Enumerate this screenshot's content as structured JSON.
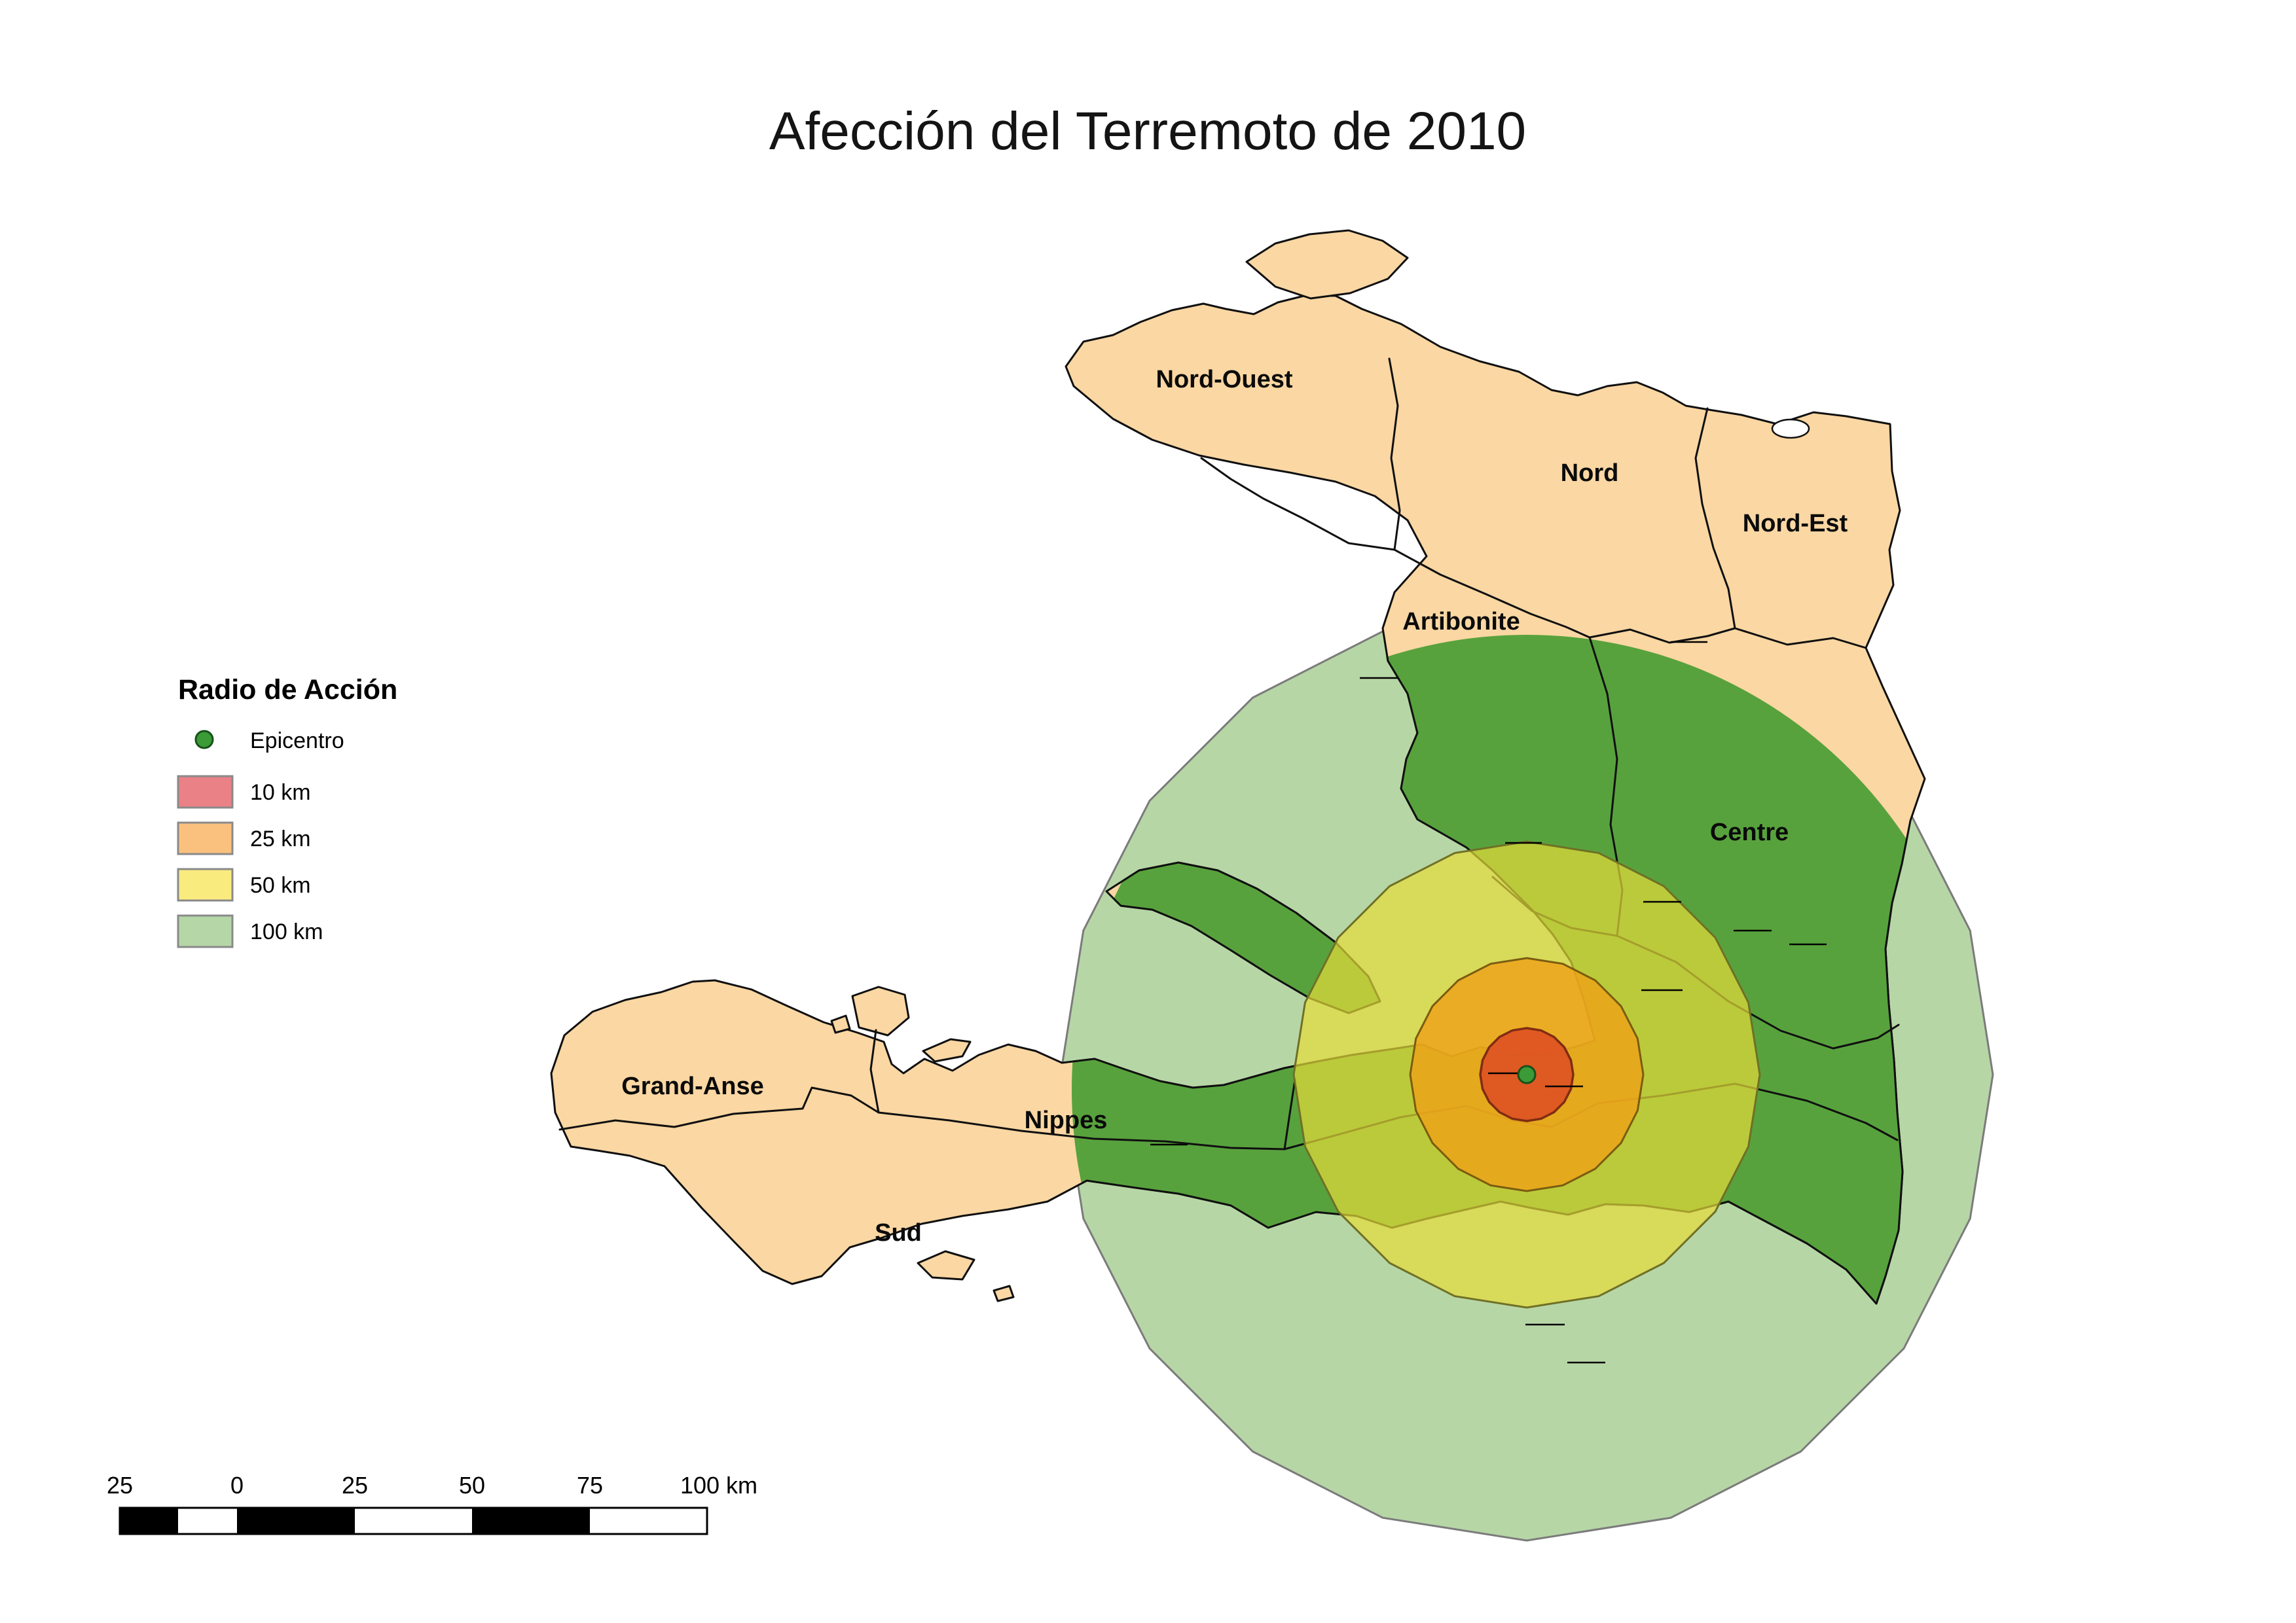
{
  "title": "Afección del Terremoto de 2010",
  "legend": {
    "title": "Radio de Acción",
    "epicenter": {
      "label": "Epicentro",
      "color": "#3B9B37"
    },
    "items": [
      {
        "label": "10 km",
        "color": "#E98186"
      },
      {
        "label": "25 km",
        "color": "#FAC17E"
      },
      {
        "label": "50 km",
        "color": "#FAEB7F"
      },
      {
        "label": "100 km",
        "color": "#B5D6A6"
      }
    ]
  },
  "regions": [
    {
      "name": "nord-ouest",
      "label": "Nord-Ouest"
    },
    {
      "name": "nord",
      "label": "Nord"
    },
    {
      "name": "nord-est",
      "label": "Nord-Est"
    },
    {
      "name": "artibonite",
      "label": "Artibonite"
    },
    {
      "name": "centre",
      "label": "Centre"
    },
    {
      "name": "grand-anse",
      "label": "Grand-Anse"
    },
    {
      "name": "nippes",
      "label": "Nippes"
    },
    {
      "name": "sud",
      "label": "Sud"
    }
  ],
  "scalebar": {
    "labels": [
      "25",
      "0",
      "25",
      "50",
      "75",
      "100 km"
    ]
  },
  "map": {
    "colors": {
      "sea": "#FFFFFF",
      "land": "#FAD7A3",
      "affected": "#58A23D",
      "buffer_100km": "#B7D6A6",
      "buffer_50km": "#E5DC39",
      "buffer_25km": "#F0A018",
      "buffer_10km": "#DE4D24",
      "epicenter": "#3B9B37"
    }
  }
}
